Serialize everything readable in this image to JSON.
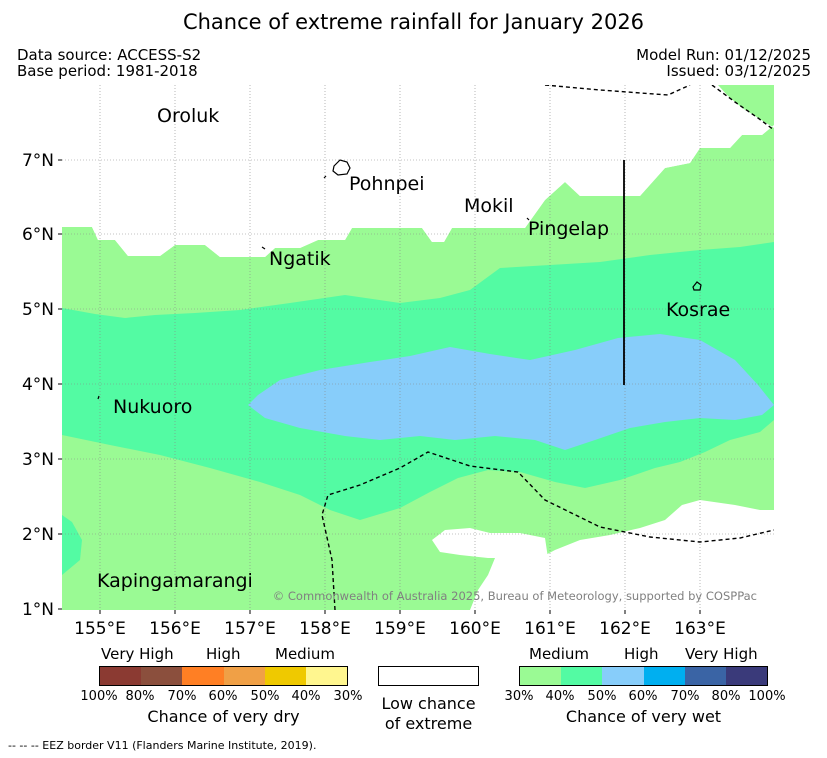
{
  "title": "Chance of extreme rainfall for January 2026",
  "meta": {
    "data_source": "Data source: ACCESS-S2",
    "base_period": "Base period: 1981-2018",
    "model_run": "Model Run: 01/12/2025",
    "issued": "Issued: 03/12/2025"
  },
  "map": {
    "latitude_labels": [
      "7°N",
      "6°N",
      "5°N",
      "4°N",
      "3°N",
      "2°N",
      "1°N"
    ],
    "longitude_labels": [
      "155°E",
      "156°E",
      "157°E",
      "158°E",
      "159°E",
      "160°E",
      "161°E",
      "162°E",
      "163°E"
    ],
    "places": {
      "oroluk": "Oroluk",
      "pohnpei": "Pohnpei",
      "mokil": "Mokil",
      "pingelap": "Pingelap",
      "ngatik": "Ngatik",
      "kosrae": "Kosrae",
      "nukuoro": "Nukuoro",
      "kapingamarangi": "Kapingamarangi"
    },
    "copyright": "© Commonwealth of Australia 2025, Bureau of Meteorology, supported by COSPPac"
  },
  "legend": {
    "dry": {
      "categories": [
        "Very High",
        "High",
        "Medium"
      ],
      "percentages": [
        "100%",
        "80%",
        "70%",
        "60%",
        "50%",
        "40%",
        "30%"
      ],
      "colors": [
        "#8b3a32",
        "#8b4f3d",
        "#ff7f24",
        "#f0a046",
        "#efc900",
        "#fff68f"
      ],
      "caption": "Chance of very dry"
    },
    "neutral": {
      "caption_line1": "Low chance",
      "caption_line2": "of extreme",
      "color": "#ffffff"
    },
    "wet": {
      "categories": [
        "Medium",
        "High",
        "Very High"
      ],
      "percentages": [
        "30%",
        "40%",
        "50%",
        "60%",
        "70%",
        "80%",
        "100%"
      ],
      "colors": [
        "#9afa94",
        "#53fba3",
        "#87cdfa",
        "#00aff0",
        "#3a64a5",
        "#3a3a7a"
      ],
      "caption": "Chance of very wet"
    }
  },
  "footnote": "-- -- -- EEZ border V11 (Flanders Marine Institute, 2019)."
}
